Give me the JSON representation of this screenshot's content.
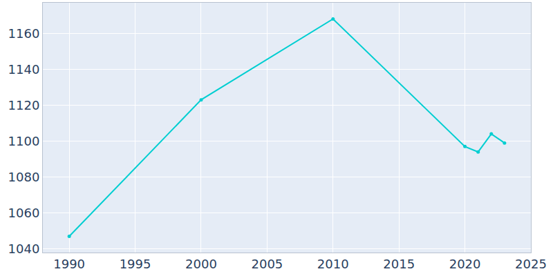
{
  "chart_data": {
    "type": "line",
    "x": [
      1990,
      2000,
      2010,
      2020,
      2021,
      2022,
      2023
    ],
    "values": [
      1047,
      1123,
      1168,
      1097,
      1094,
      1104,
      1099
    ],
    "color": "#00ced1",
    "marker": "circle",
    "xlim": [
      1988,
      2025
    ],
    "xticks": [
      1990,
      1995,
      2000,
      2005,
      2010,
      2015,
      2020,
      2025
    ],
    "ylim": [
      1038,
      1177
    ],
    "yticks": [
      1040,
      1060,
      1080,
      1100,
      1120,
      1140,
      1160
    ],
    "grid": true
  }
}
